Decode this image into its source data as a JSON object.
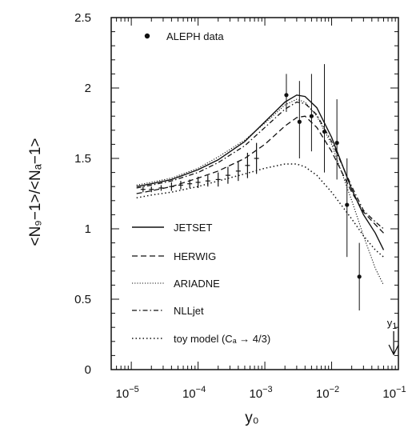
{
  "chart_data": {
    "type": "line",
    "xlabel": "y₀",
    "ylabel": "<N₉−1>/<Nₐ−1>",
    "xscale": "log",
    "xlim": [
      5e-06,
      0.1
    ],
    "ylim": [
      0,
      2.5
    ],
    "x_ticks": [
      {
        "base": "10",
        "exp": "−5",
        "value": 1e-05
      },
      {
        "base": "10",
        "exp": "−4",
        "value": 0.0001
      },
      {
        "base": "10",
        "exp": "−3",
        "value": 0.001
      },
      {
        "base": "10",
        "exp": "−2",
        "value": 0.01
      },
      {
        "base": "10",
        "exp": "−1",
        "value": 0.1
      }
    ],
    "y_ticks": [
      {
        "label": "0",
        "value": 0
      },
      {
        "label": "0.5",
        "value": 0.5
      },
      {
        "label": "1",
        "value": 1
      },
      {
        "label": "1.5",
        "value": 1.5
      },
      {
        "label": "2",
        "value": 2
      },
      {
        "label": "2.5",
        "value": 2.5
      }
    ],
    "grid": false,
    "legend_placement": "left",
    "data_points": {
      "name": "ALEPH data",
      "x": [
        0.0021,
        0.0033,
        0.005,
        0.0078,
        0.012,
        0.017,
        0.026
      ],
      "y": [
        1.95,
        1.76,
        1.8,
        1.69,
        1.61,
        1.17,
        0.66
      ],
      "yerr_low": [
        1.83,
        1.5,
        1.55,
        1.4,
        1.35,
        0.8,
        0.42
      ],
      "yerr_high": [
        2.1,
        2.05,
        2.1,
        2.17,
        1.92,
        1.5,
        0.9
      ]
    },
    "low_points": {
      "x": [
        1.5e-05,
        2e-05,
        2.8e-05,
        4e-05,
        5.5e-05,
        7.5e-05,
        0.0001,
        0.00014,
        0.0002,
        0.00028,
        0.0004,
        0.00055,
        0.00075
      ],
      "y": [
        1.28,
        1.28,
        1.29,
        1.3,
        1.31,
        1.32,
        1.33,
        1.34,
        1.35,
        1.38,
        1.41,
        1.45,
        1.5
      ],
      "yerr": [
        0.02,
        0.02,
        0.02,
        0.03,
        0.03,
        0.03,
        0.04,
        0.04,
        0.05,
        0.06,
        0.07,
        0.09,
        0.11
      ]
    },
    "series": [
      {
        "name": "JETSET",
        "style": "solid",
        "x": [
          1.2e-05,
          2e-05,
          4e-05,
          0.0001,
          0.0002,
          0.0005,
          0.001,
          0.002,
          0.003,
          0.004,
          0.006,
          0.01,
          0.02,
          0.03,
          0.045,
          0.06
        ],
        "y": [
          1.3,
          1.32,
          1.35,
          1.42,
          1.49,
          1.62,
          1.76,
          1.9,
          1.95,
          1.94,
          1.86,
          1.65,
          1.28,
          1.1,
          0.97,
          0.85
        ]
      },
      {
        "name": "HERWIG",
        "style": "dashed",
        "x": [
          1.2e-05,
          2e-05,
          4e-05,
          0.0001,
          0.0002,
          0.0005,
          0.001,
          0.002,
          0.003,
          0.004,
          0.006,
          0.01,
          0.02,
          0.03,
          0.045,
          0.06
        ],
        "y": [
          1.25,
          1.27,
          1.3,
          1.36,
          1.41,
          1.5,
          1.6,
          1.73,
          1.79,
          1.8,
          1.72,
          1.55,
          1.26,
          1.12,
          1.03,
          0.97
        ]
      },
      {
        "name": "ARIADNE",
        "style": "dotted",
        "x": [
          1.2e-05,
          2e-05,
          4e-05,
          0.0001,
          0.0002,
          0.0005,
          0.001,
          0.002,
          0.003,
          0.004,
          0.006,
          0.01,
          0.02,
          0.03,
          0.045,
          0.06
        ],
        "y": [
          1.31,
          1.33,
          1.36,
          1.43,
          1.51,
          1.63,
          1.75,
          1.88,
          1.92,
          1.9,
          1.8,
          1.6,
          1.2,
          0.95,
          0.72,
          0.6
        ]
      },
      {
        "name": "NLLjet",
        "style": "dashdot",
        "x": [
          1.2e-05,
          2e-05,
          4e-05,
          0.0001,
          0.0002,
          0.0005,
          0.001,
          0.002,
          0.003,
          0.004,
          0.006,
          0.01,
          0.02,
          0.03,
          0.045,
          0.06
        ],
        "y": [
          1.29,
          1.31,
          1.34,
          1.4,
          1.47,
          1.59,
          1.72,
          1.85,
          1.9,
          1.89,
          1.81,
          1.62,
          1.3,
          1.13,
          1.05,
          1.0
        ]
      },
      {
        "name": "toy model (Cₐ → 4/3)",
        "style": "dense-dotted",
        "x": [
          1.2e-05,
          2e-05,
          4e-05,
          0.0001,
          0.0002,
          0.0005,
          0.001,
          0.002,
          0.003,
          0.004,
          0.006,
          0.01,
          0.02,
          0.03,
          0.045,
          0.06
        ],
        "y": [
          1.22,
          1.24,
          1.26,
          1.3,
          1.34,
          1.39,
          1.43,
          1.46,
          1.46,
          1.44,
          1.38,
          1.26,
          1.07,
          0.95,
          0.85,
          0.8
        ]
      }
    ],
    "annotations": {
      "y1_label": "y",
      "y1_sub": "1",
      "y1_x": 0.085
    }
  }
}
